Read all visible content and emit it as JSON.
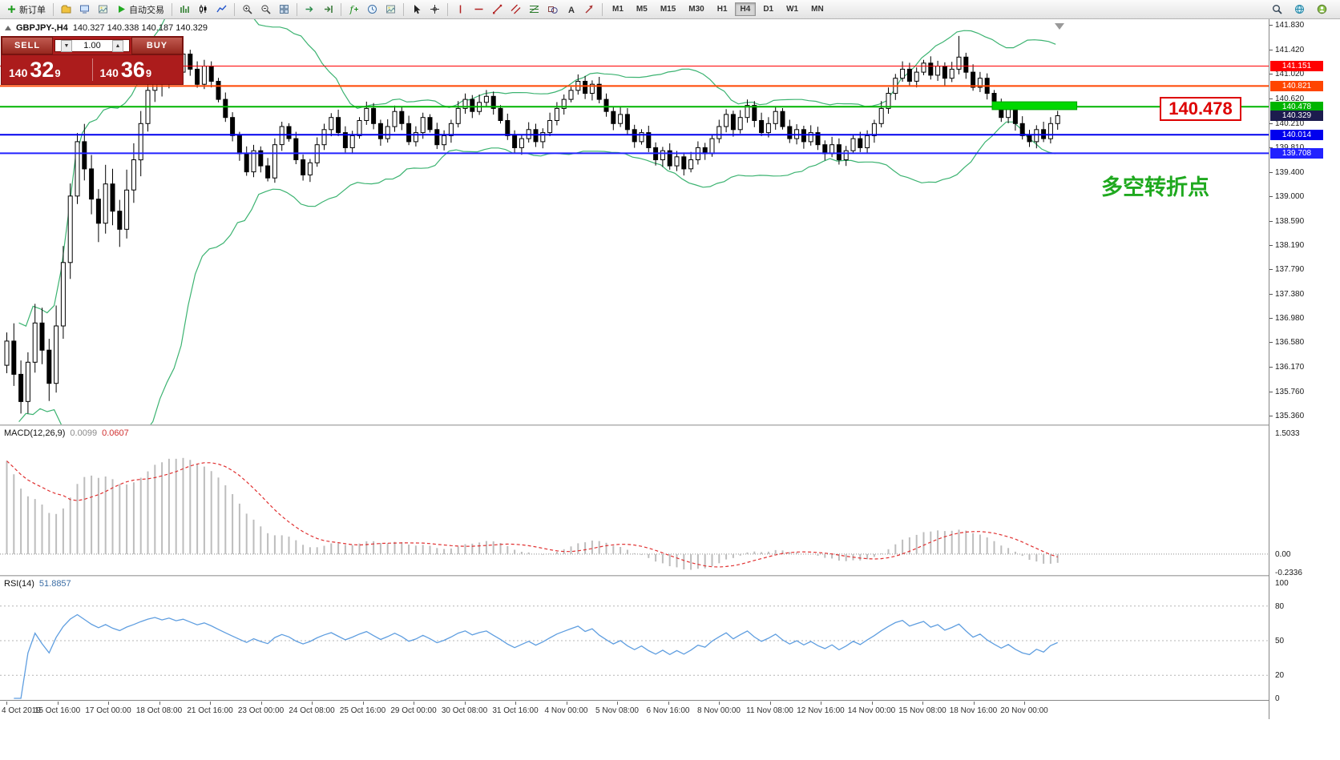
{
  "toolbar": {
    "items": [
      {
        "name": "new-order",
        "icon": "plus",
        "label": "新订单"
      },
      {
        "sep": true
      },
      {
        "name": "charts-profile",
        "icon": "folder"
      },
      {
        "name": "market-watch",
        "icon": "monitor"
      },
      {
        "name": "data-window",
        "icon": "image"
      },
      {
        "name": "autotrading",
        "icon": "play",
        "label": "自动交易"
      },
      {
        "sep": true
      },
      {
        "name": "bar-chart-mode",
        "icon": "barchart"
      },
      {
        "name": "candlestick-mode",
        "icon": "candle"
      },
      {
        "name": "line-chart-mode",
        "icon": "linechart"
      },
      {
        "sep": true
      },
      {
        "name": "zoom-in",
        "icon": "zoomin"
      },
      {
        "name": "zoom-out",
        "icon": "zoomout"
      },
      {
        "name": "tile-windows",
        "icon": "tile"
      },
      {
        "sep": true
      },
      {
        "name": "auto-scroll",
        "icon": "autoscroll"
      },
      {
        "name": "chart-shift",
        "icon": "shift"
      },
      {
        "sep": true
      },
      {
        "name": "indicators",
        "icon": "func"
      },
      {
        "name": "periods",
        "icon": "clock"
      },
      {
        "name": "templates",
        "icon": "image"
      },
      {
        "sep": true
      },
      {
        "name": "cursor-tool",
        "icon": "cursor"
      },
      {
        "name": "crosshair-tool",
        "icon": "crosshair"
      },
      {
        "sep": true
      },
      {
        "name": "vertical-line-tool",
        "icon": "vline"
      },
      {
        "name": "horizontal-line-tool",
        "icon": "hline"
      },
      {
        "name": "trendline-tool",
        "icon": "trend"
      },
      {
        "name": "channel-tool",
        "icon": "channel"
      },
      {
        "name": "fibonacci-tool",
        "icon": "fibo"
      },
      {
        "name": "shapes-tool",
        "icon": "shapes"
      },
      {
        "name": "text-tool",
        "icon": "text"
      },
      {
        "name": "arrows-tool",
        "icon": "arrowtool"
      },
      {
        "sep": true
      }
    ],
    "timeframes": [
      {
        "label": "M1"
      },
      {
        "label": "M5"
      },
      {
        "label": "M15"
      },
      {
        "label": "M30"
      },
      {
        "label": "H1"
      },
      {
        "label": "H4",
        "active": true
      },
      {
        "label": "D1"
      },
      {
        "label": "W1"
      },
      {
        "label": "MN"
      }
    ],
    "right_items": [
      {
        "name": "search",
        "icon": "search"
      },
      {
        "name": "metaquotes-community",
        "icon": "globe"
      },
      {
        "name": "user-account",
        "icon": "user"
      }
    ]
  },
  "chart": {
    "symbol_label": "GBPJPY-,H4",
    "ohlc_label": "140.327 140.338 140.187 140.329",
    "annotation_text": "多空转折点",
    "callout_text": "140.478"
  },
  "trade_panel": {
    "sell_label": "SELL",
    "buy_label": "BUY",
    "volume": "1.00",
    "spinner_down": "▼",
    "spinner_up": "▲",
    "sell_price": {
      "main": "140",
      "big": "32",
      "sup": "9"
    },
    "buy_price": {
      "main": "140",
      "big": "36",
      "sup": "9"
    }
  },
  "chart_data": {
    "type": "candlestick",
    "symbol": "GBPJPY",
    "timeframe": "H4",
    "first_open": 136.2,
    "closes": [
      136.6,
      136.05,
      135.6,
      136.25,
      136.9,
      136.45,
      135.9,
      136.85,
      137.9,
      139.0,
      139.9,
      139.45,
      138.95,
      138.55,
      139.2,
      138.75,
      138.45,
      139.1,
      139.6,
      140.2,
      140.75,
      141.15,
      140.9,
      141.3,
      141.05,
      141.35,
      141.1,
      140.85,
      141.15,
      140.9,
      140.6,
      140.3,
      140.0,
      139.7,
      139.4,
      139.75,
      139.5,
      139.3,
      139.85,
      140.15,
      139.95,
      139.6,
      139.35,
      139.55,
      139.85,
      140.1,
      140.3,
      140.05,
      139.8,
      140.0,
      140.25,
      140.45,
      140.2,
      139.95,
      140.15,
      140.4,
      140.2,
      139.9,
      140.05,
      140.3,
      140.1,
      139.85,
      140.0,
      140.2,
      140.45,
      140.6,
      140.4,
      140.55,
      140.65,
      140.45,
      140.25,
      140.0,
      139.8,
      139.95,
      140.1,
      139.9,
      140.05,
      140.25,
      140.45,
      140.6,
      140.75,
      140.9,
      140.7,
      140.85,
      140.6,
      140.4,
      140.2,
      140.35,
      140.1,
      139.9,
      140.05,
      139.8,
      139.6,
      139.75,
      139.5,
      139.65,
      139.45,
      139.6,
      139.8,
      139.7,
      139.95,
      140.15,
      140.35,
      140.1,
      140.3,
      140.5,
      140.25,
      140.05,
      140.2,
      140.4,
      140.15,
      139.95,
      140.1,
      139.9,
      140.05,
      139.85,
      139.7,
      139.85,
      139.6,
      139.75,
      139.95,
      139.8,
      140.0,
      140.2,
      140.45,
      140.7,
      140.95,
      141.1,
      140.9,
      141.05,
      141.2,
      141.0,
      141.15,
      140.95,
      141.1,
      141.3,
      141.05,
      140.8,
      140.95,
      140.7,
      140.5,
      140.3,
      140.45,
      140.2,
      140.0,
      139.9,
      140.1,
      139.95,
      140.2,
      140.33
    ],
    "spike": {
      "index": 135,
      "high": 141.65
    },
    "levels": [
      {
        "price": 141.151,
        "label": "141.151",
        "color": "#ff0000",
        "width": 1
      },
      {
        "price": 140.821,
        "label": "140.821",
        "color": "#ff4500",
        "width": 2
      },
      {
        "price": 140.478,
        "label": "140.478",
        "color": "#00b400",
        "width": 2
      },
      {
        "price": 140.014,
        "label": "140.014",
        "color": "#0000ee",
        "width": 2
      },
      {
        "price": 139.708,
        "label": "139.708",
        "color": "#2222ff",
        "width": 2
      }
    ],
    "current_price": {
      "label": "140.329",
      "color": "#1c1c4e"
    },
    "highlight_zone": {
      "bar_start": 140,
      "bar_end": 152,
      "price_top": 140.56,
      "price_bottom": 140.43,
      "color": "#00d800"
    },
    "y_axis_labels": [
      "141.830",
      "141.420",
      "141.020",
      "140.620",
      "140.210",
      "139.810",
      "139.400",
      "139.000",
      "138.590",
      "138.190",
      "137.790",
      "137.380",
      "136.980",
      "136.580",
      "136.170",
      "135.760",
      "135.360"
    ],
    "time_axis_labels": [
      "4 Oct 2019",
      "15 Oct 16:00",
      "17 Oct 00:00",
      "18 Oct 08:00",
      "21 Oct 16:00",
      "23 Oct 00:00",
      "24 Oct 08:00",
      "25 Oct 16:00",
      "29 Oct 00:00",
      "30 Oct 08:00",
      "31 Oct 16:00",
      "4 Nov 00:00",
      "5 Nov 08:00",
      "6 Nov 16:00",
      "8 Nov 00:00",
      "11 Nov 08:00",
      "12 Nov 16:00",
      "14 Nov 00:00",
      "15 Nov 08:00",
      "18 Nov 16:00",
      "20 Nov 00:00"
    ],
    "bollinger": {
      "period": 20,
      "deviation": 2,
      "color": "#3cb371"
    },
    "macd": {
      "label": "MACD(12,26,9)",
      "value1": "0.0099",
      "value2": "0.0607",
      "axis_labels": [
        {
          "text": "1.5033",
          "value": 1.5033
        },
        {
          "text": "0.00",
          "value": 0
        },
        {
          "text": "-0.2336",
          "value": -0.2336
        }
      ],
      "hist_color": "#bdbdbd",
      "signal_color": "#e03030"
    },
    "rsi": {
      "label": "RSI(14)",
      "value": "51.8857",
      "levels": [
        80,
        50,
        20
      ],
      "axis_labels": [
        {
          "text": "100",
          "value": 100
        },
        {
          "text": "80",
          "value": 80
        },
        {
          "text": "50",
          "value": 50
        },
        {
          "text": "20",
          "value": 20
        },
        {
          "text": "0",
          "value": 0
        }
      ],
      "color": "#5f9ee0"
    }
  },
  "colors": {
    "candle_up": "#ffffff",
    "candle_down": "#000000",
    "candle_border": "#000000",
    "background": "#ffffff"
  }
}
